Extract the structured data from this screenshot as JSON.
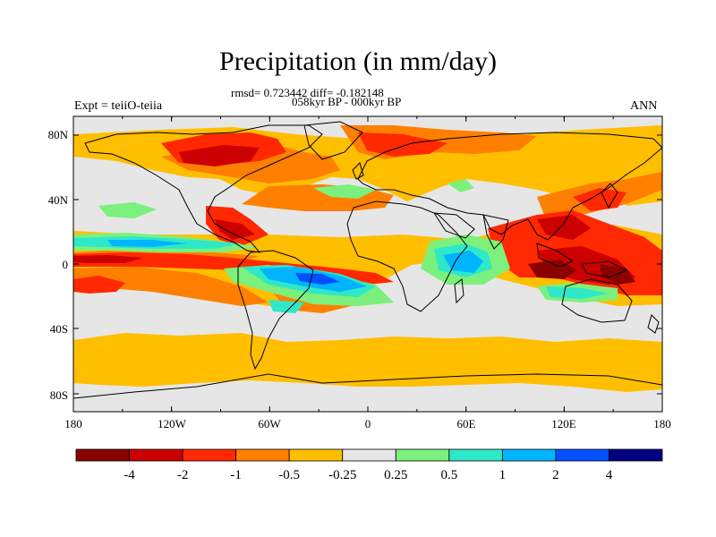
{
  "title": "Precipitation (in mm/day)",
  "stats_line": "rmsd= 0.723442 diff= -0.182148",
  "period": "058kyr BP - 000kyr BP",
  "experiment": "Expt = teiiO-teiia",
  "season": "ANN",
  "latitude_ticks": [
    "80N",
    "40N",
    "0",
    "40S",
    "80S"
  ],
  "longitude_ticks": [
    "180",
    "120W",
    "60W",
    "0",
    "60E",
    "120E",
    "180"
  ],
  "colorbar": {
    "labels": [
      "-4",
      "-2",
      "-1",
      "-0.5",
      "-0.25",
      "0.25",
      "0.5",
      "1",
      "2",
      "4"
    ],
    "colors": [
      "#8b0000",
      "#cc0000",
      "#ff2800",
      "#ff7f00",
      "#ffbf00",
      "#e6e6e6",
      "#7cf07c",
      "#2ee8c8",
      "#00b4ff",
      "#0050ff",
      "#000080"
    ]
  },
  "colors": {
    "land_outline": "#000000",
    "neutral": "#e6e6e6"
  }
}
